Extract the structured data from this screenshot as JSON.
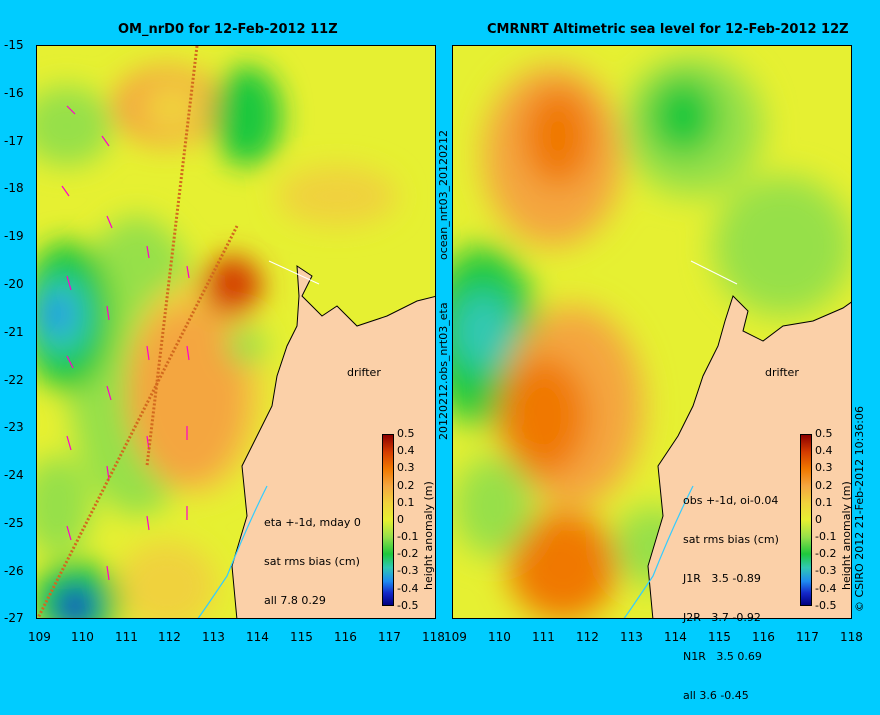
{
  "left": {
    "title": "OM_nrD0 for 12-Feb-2012 11Z",
    "legend": [
      "eta +-1d, mday 0",
      "sat rms bias (cm)",
      "all 7.8 0.29"
    ],
    "drifter": "drifter"
  },
  "right": {
    "title": "CMRNRT Altimetric sea level  for 12-Feb-2012 12Z",
    "legend": [
      "obs +-1d, oi-0.04",
      "sat rms bias (cm)",
      "J1R   3.5 -0.89",
      "J2R   3.7 -0.92",
      "N1R   3.5 0.69",
      "all 3.6 -0.45"
    ],
    "drifter": "drifter"
  },
  "y_ticks": [
    "-15",
    "-16",
    "-17",
    "-18",
    "-19",
    "-20",
    "-21",
    "-22",
    "-23",
    "-24",
    "-25",
    "-26",
    "-27"
  ],
  "x_ticks": [
    "109",
    "110",
    "111",
    "112",
    "113",
    "114",
    "115",
    "116",
    "117",
    "118"
  ],
  "side_label_top": "ocean_nrt03_20120212",
  "side_label_bottom": "20120212.obs_nrt03_eta",
  "copyright": "© CSIRO 2012  21-Feb-2012 10:36:06",
  "colorbar": {
    "ticks": [
      "0.5",
      "0.4",
      "0.3",
      "0.2",
      "0.1",
      "0",
      "-0.1",
      "-0.2",
      "-0.3",
      "-0.4",
      "-0.5"
    ],
    "label": "height anomaly (m)"
  }
}
